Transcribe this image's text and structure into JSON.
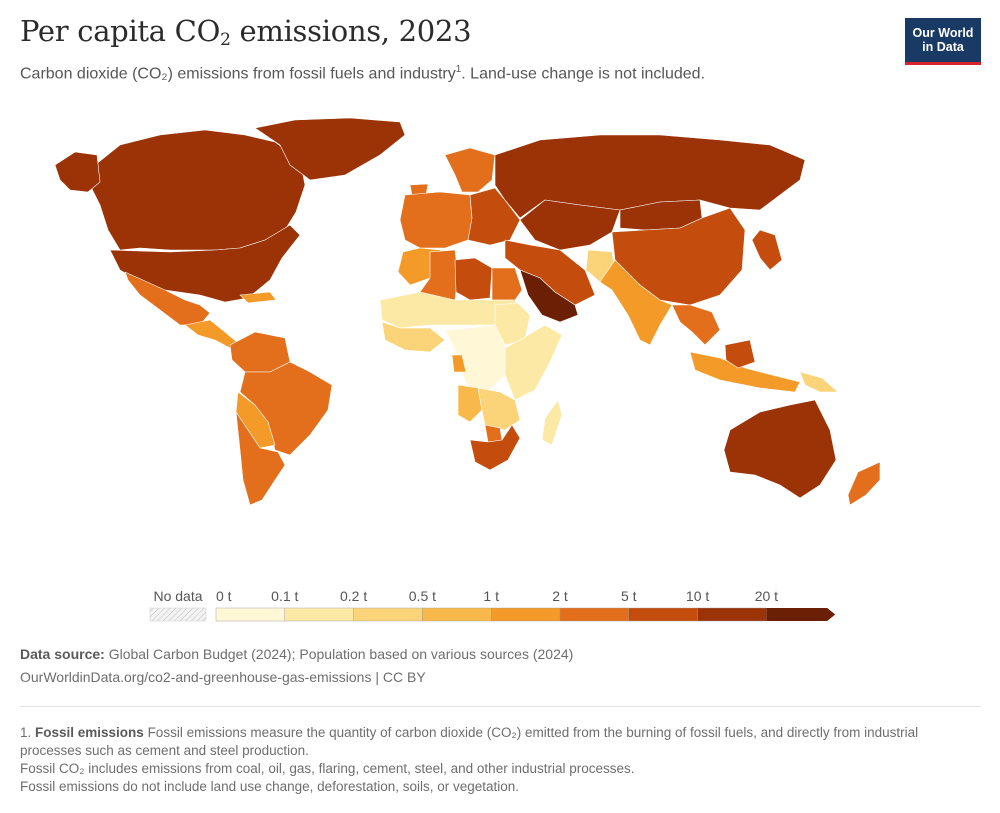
{
  "header": {
    "title_main": "Per capita CO",
    "title_sub": "2",
    "title_tail": " emissions, 2023",
    "subtitle": "Carbon dioxide (CO₂) emissions from fossil fuels and industry",
    "subtitle_note": "1",
    "subtitle_tail": ". Land-use change is not included."
  },
  "logo": {
    "line1": "Our World",
    "line2": "in Data"
  },
  "colors": {
    "no_data": "#e8e8e8",
    "bin0": "#fff7d6",
    "bin1": "#fde9a6",
    "bin2": "#fbd47a",
    "bin3": "#f9b94a",
    "bin4": "#f49a28",
    "bin5": "#e36f1c",
    "bin6": "#c44d0e",
    "bin7": "#9b3306",
    "bin8": "#6b1f05",
    "stroke": "#ffffff"
  },
  "legend": {
    "no_data_label": "No data",
    "thresholds": [
      "0 t",
      "0.1 t",
      "0.2 t",
      "0.5 t",
      "1 t",
      "2 t",
      "5 t",
      "10 t",
      "20 t"
    ]
  },
  "map_regions": [
    {
      "region": "Canada",
      "bin": 7
    },
    {
      "region": "Greenland",
      "bin": 7
    },
    {
      "region": "United States",
      "bin": 7
    },
    {
      "region": "Alaska",
      "bin": 7
    },
    {
      "region": "Mexico",
      "bin": 5
    },
    {
      "region": "Central America & Caribbean",
      "bin": 4
    },
    {
      "region": "Venezuela / Colombia",
      "bin": 5
    },
    {
      "region": "Brazil",
      "bin": 5
    },
    {
      "region": "Bolivia / Paraguay",
      "bin": 4
    },
    {
      "region": "Argentina / Chile",
      "bin": 5
    },
    {
      "region": "Iceland / Scandinavia",
      "bin": 5
    },
    {
      "region": "Western Europe",
      "bin": 5
    },
    {
      "region": "Eastern Europe",
      "bin": 6
    },
    {
      "region": "Russia",
      "bin": 7
    },
    {
      "region": "Kazakhstan / Central Asia",
      "bin": 7
    },
    {
      "region": "Middle East",
      "bin": 6
    },
    {
      "region": "Arabian Peninsula",
      "bin": 8
    },
    {
      "region": "Afghanistan",
      "bin": 2
    },
    {
      "region": "China",
      "bin": 6
    },
    {
      "region": "Mongolia",
      "bin": 7
    },
    {
      "region": "India / South Asia",
      "bin": 4
    },
    {
      "region": "Southeast Asia",
      "bin": 5
    },
    {
      "region": "Japan / Korea",
      "bin": 6
    },
    {
      "region": "Indonesia",
      "bin": 4
    },
    {
      "region": "Malaysia (Borneo)",
      "bin": 6
    },
    {
      "region": "Papua New Guinea",
      "bin": 2
    },
    {
      "region": "Australia",
      "bin": 7
    },
    {
      "region": "New Zealand",
      "bin": 5
    },
    {
      "region": "North Africa (Morocco)",
      "bin": 4
    },
    {
      "region": "Algeria",
      "bin": 5
    },
    {
      "region": "Libya",
      "bin": 6
    },
    {
      "region": "Egypt",
      "bin": 5
    },
    {
      "region": "Sahel",
      "bin": 1
    },
    {
      "region": "West Africa coast",
      "bin": 2
    },
    {
      "region": "Central Africa",
      "bin": 0
    },
    {
      "region": "Gabon",
      "bin": 4
    },
    {
      "region": "East Africa",
      "bin": 1
    },
    {
      "region": "Sudan",
      "bin": 1
    },
    {
      "region": "Angola",
      "bin": 3
    },
    {
      "region": "Southern Africa",
      "bin": 2
    },
    {
      "region": "South Africa",
      "bin": 6
    },
    {
      "region": "Botswana",
      "bin": 5
    },
    {
      "region": "Madagascar",
      "bin": 1
    }
  ],
  "source": {
    "label": "Data source:",
    "text": " Global Carbon Budget (2024); Population based on various sources (2024)",
    "url": "OurWorldinData.org/co2-and-greenhouse-gas-emissions | CC BY"
  },
  "notes": {
    "num": "1. ",
    "heading": "Fossil emissions",
    "line1": " Fossil emissions measure the quantity of carbon dioxide (CO₂) emitted from the burning of fossil fuels, and directly from industrial processes such as cement and steel production.",
    "line2": "Fossil CO₂ includes emissions from coal, oil, gas, flaring, cement, steel, and other industrial processes.",
    "line3": "Fossil emissions do not include land use change, deforestation, soils, or vegetation."
  }
}
